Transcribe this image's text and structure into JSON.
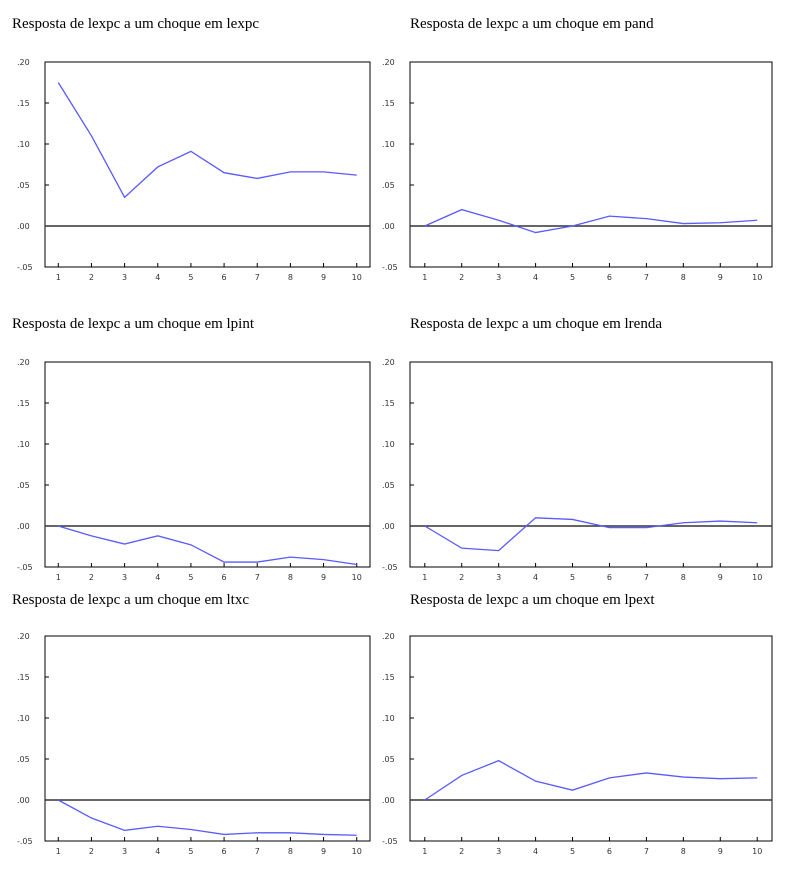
{
  "chart_data": [
    {
      "type": "line",
      "title": "Resposta de lexpc a um choque em lexpc",
      "color": "#5a5aff",
      "x": [
        1,
        2,
        3,
        4,
        5,
        6,
        7,
        8,
        9,
        10
      ],
      "values": [
        0.175,
        0.11,
        0.035,
        0.072,
        0.091,
        0.065,
        0.058,
        0.066,
        0.066,
        0.062
      ],
      "xlim": [
        0.6,
        10.4
      ],
      "xticks": [
        1,
        2,
        3,
        4,
        5,
        6,
        7,
        8,
        9,
        10
      ],
      "ylim": [
        -0.05,
        0.2
      ],
      "yticks": [
        {
          "value": -0.05,
          "label": "-.05"
        },
        {
          "value": 0,
          "label": ".00"
        },
        {
          "value": 0.05,
          "label": ".05"
        },
        {
          "value": 0.1,
          "label": ".10"
        },
        {
          "value": 0.15,
          "label": ".15"
        },
        {
          "value": 0.2,
          "label": ".20"
        }
      ]
    },
    {
      "type": "line",
      "title": "Resposta de lexpc a um choque em pand",
      "color": "#5a5aff",
      "x": [
        1,
        2,
        3,
        4,
        5,
        6,
        7,
        8,
        9,
        10
      ],
      "values": [
        0.0,
        0.02,
        0.007,
        -0.008,
        0.0,
        0.012,
        0.009,
        0.003,
        0.004,
        0.007
      ],
      "xlim": [
        0.6,
        10.4
      ],
      "xticks": [
        1,
        2,
        3,
        4,
        5,
        6,
        7,
        8,
        9,
        10
      ],
      "ylim": [
        -0.05,
        0.2
      ],
      "yticks": [
        {
          "value": -0.05,
          "label": "-.05"
        },
        {
          "value": 0,
          "label": ".00"
        },
        {
          "value": 0.05,
          "label": ".05"
        },
        {
          "value": 0.1,
          "label": ".10"
        },
        {
          "value": 0.15,
          "label": ".15"
        },
        {
          "value": 0.2,
          "label": ".20"
        }
      ]
    },
    {
      "type": "line",
      "title": "Resposta de lexpc a um choque em lpint",
      "color": "#5a5aff",
      "x": [
        1,
        2,
        3,
        4,
        5,
        6,
        7,
        8,
        9,
        10
      ],
      "values": [
        0.0,
        -0.012,
        -0.022,
        -0.012,
        -0.023,
        -0.044,
        -0.044,
        -0.038,
        -0.041,
        -0.047
      ],
      "xlim": [
        0.6,
        10.4
      ],
      "xticks": [
        1,
        2,
        3,
        4,
        5,
        6,
        7,
        8,
        9,
        10
      ],
      "ylim": [
        -0.05,
        0.2
      ],
      "yticks": [
        {
          "value": -0.05,
          "label": "-.05"
        },
        {
          "value": 0,
          "label": ".00"
        },
        {
          "value": 0.05,
          "label": ".05"
        },
        {
          "value": 0.1,
          "label": ".10"
        },
        {
          "value": 0.15,
          "label": ".15"
        },
        {
          "value": 0.2,
          "label": ".20"
        }
      ]
    },
    {
      "type": "line",
      "title": "Resposta de lexpc a um choque em lrenda",
      "color": "#5a5aff",
      "x": [
        1,
        2,
        3,
        4,
        5,
        6,
        7,
        8,
        9,
        10
      ],
      "values": [
        0.0,
        -0.027,
        -0.03,
        0.01,
        0.008,
        -0.002,
        -0.002,
        0.004,
        0.006,
        0.004
      ],
      "xlim": [
        0.6,
        10.4
      ],
      "xticks": [
        1,
        2,
        3,
        4,
        5,
        6,
        7,
        8,
        9,
        10
      ],
      "ylim": [
        -0.05,
        0.2
      ],
      "yticks": [
        {
          "value": -0.05,
          "label": "-.05"
        },
        {
          "value": 0,
          "label": ".00"
        },
        {
          "value": 0.05,
          "label": ".05"
        },
        {
          "value": 0.1,
          "label": ".10"
        },
        {
          "value": 0.15,
          "label": ".15"
        },
        {
          "value": 0.2,
          "label": ".20"
        }
      ]
    },
    {
      "type": "line",
      "title": "Resposta de lexpc a um choque em ltxc",
      "color": "#5a5aff",
      "x": [
        1,
        2,
        3,
        4,
        5,
        6,
        7,
        8,
        9,
        10
      ],
      "values": [
        0.0,
        -0.022,
        -0.037,
        -0.032,
        -0.036,
        -0.042,
        -0.04,
        -0.04,
        -0.042,
        -0.043
      ],
      "xlim": [
        0.6,
        10.4
      ],
      "xticks": [
        1,
        2,
        3,
        4,
        5,
        6,
        7,
        8,
        9,
        10
      ],
      "ylim": [
        -0.05,
        0.2
      ],
      "yticks": [
        {
          "value": -0.05,
          "label": "-.05"
        },
        {
          "value": 0,
          "label": ".00"
        },
        {
          "value": 0.05,
          "label": ".05"
        },
        {
          "value": 0.1,
          "label": ".10"
        },
        {
          "value": 0.15,
          "label": ".15"
        },
        {
          "value": 0.2,
          "label": ".20"
        }
      ]
    },
    {
      "type": "line",
      "title": "Resposta de lexpc a um choque em lpext",
      "color": "#5a5aff",
      "x": [
        1,
        2,
        3,
        4,
        5,
        6,
        7,
        8,
        9,
        10
      ],
      "values": [
        0.0,
        0.03,
        0.048,
        0.023,
        0.012,
        0.027,
        0.033,
        0.028,
        0.026,
        0.027
      ],
      "xlim": [
        0.6,
        10.4
      ],
      "xticks": [
        1,
        2,
        3,
        4,
        5,
        6,
        7,
        8,
        9,
        10
      ],
      "ylim": [
        -0.05,
        0.2
      ],
      "yticks": [
        {
          "value": -0.05,
          "label": "-.05"
        },
        {
          "value": 0,
          "label": ".00"
        },
        {
          "value": 0.05,
          "label": ".05"
        },
        {
          "value": 0.1,
          "label": ".10"
        },
        {
          "value": 0.15,
          "label": ".15"
        },
        {
          "value": 0.2,
          "label": ".20"
        }
      ]
    }
  ]
}
